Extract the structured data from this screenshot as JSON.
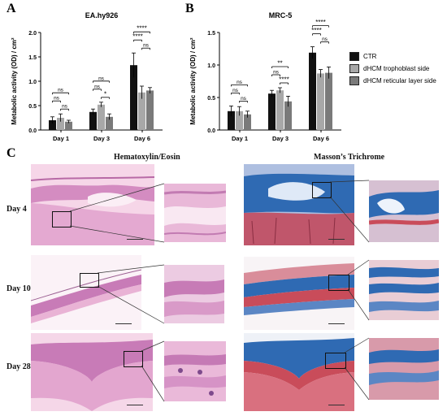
{
  "panels": {
    "a": "A",
    "b": "B",
    "c": "C"
  },
  "colors": {
    "ctr": "#111111",
    "trophoblast": "#a8a8a8",
    "reticular": "#7a7a7a",
    "he_bg": "#f2c8de",
    "he_tissue": "#d98ac0",
    "mt_blue": "#2f6ab3",
    "mt_red": "#c94c5a"
  },
  "chart_data": [
    {
      "type": "bar",
      "title": "EA.hy926",
      "ylabel": "Metabolic activity (OD) / cm²",
      "xlabel": "",
      "categories": [
        "Day 1",
        "Day 3",
        "Day 6"
      ],
      "ylim": [
        0,
        2.0
      ],
      "yticks": [
        "0.0",
        "0.5",
        "1.0",
        "1.5",
        "2.0"
      ],
      "grid": false,
      "series": [
        {
          "name": "CTR",
          "values": [
            0.2,
            0.37,
            1.33
          ],
          "errors": [
            0.07,
            0.06,
            0.25
          ]
        },
        {
          "name": "dHCM trophoblast side",
          "values": [
            0.25,
            0.52,
            0.77
          ],
          "errors": [
            0.08,
            0.05,
            0.13
          ]
        },
        {
          "name": "dHCM reticular layer side",
          "values": [
            0.17,
            0.27,
            0.81
          ],
          "errors": [
            0.03,
            0.06,
            0.06
          ]
        }
      ],
      "significance": [
        {
          "label": "ns",
          "pair": [
            0,
            2
          ],
          "category": 0
        },
        {
          "label": "ns",
          "pair": [
            0,
            1
          ],
          "category": 0
        },
        {
          "label": "ns",
          "pair": [
            1,
            2
          ],
          "category": 0
        },
        {
          "label": "ns",
          "pair": [
            0,
            2
          ],
          "category": 1
        },
        {
          "label": "ns",
          "pair": [
            0,
            1
          ],
          "category": 1
        },
        {
          "label": "*",
          "pair": [
            1,
            2
          ],
          "category": 1
        },
        {
          "label": "****",
          "pair": [
            0,
            2
          ],
          "category": 2
        },
        {
          "label": "****",
          "pair": [
            0,
            1
          ],
          "category": 2
        },
        {
          "label": "ns",
          "pair": [
            1,
            2
          ],
          "category": 2
        }
      ]
    },
    {
      "type": "bar",
      "title": "MRC-5",
      "ylabel": "Metabolic activity (OD) / cm²",
      "xlabel": "",
      "categories": [
        "Day 1",
        "Day 3",
        "Day 6"
      ],
      "ylim": [
        0,
        1.5
      ],
      "yticks": [
        "0.0",
        "0.5",
        "1.0",
        "1.5"
      ],
      "grid": false,
      "legend": "right",
      "series": [
        {
          "name": "CTR",
          "values": [
            0.29,
            0.56,
            1.19
          ],
          "errors": [
            0.08,
            0.05,
            0.09
          ]
        },
        {
          "name": "dHCM trophoblast side",
          "values": [
            0.29,
            0.61,
            0.87
          ],
          "errors": [
            0.07,
            0.04,
            0.06
          ]
        },
        {
          "name": "dHCM reticular layer side",
          "values": [
            0.24,
            0.44,
            0.88
          ],
          "errors": [
            0.05,
            0.08,
            0.09
          ]
        }
      ],
      "significance": [
        {
          "label": "ns",
          "pair": [
            0,
            2
          ],
          "category": 0
        },
        {
          "label": "ns",
          "pair": [
            0,
            1
          ],
          "category": 0
        },
        {
          "label": "ns",
          "pair": [
            1,
            2
          ],
          "category": 0
        },
        {
          "label": "**",
          "pair": [
            0,
            2
          ],
          "category": 1
        },
        {
          "label": "ns",
          "pair": [
            0,
            1
          ],
          "category": 1
        },
        {
          "label": "****",
          "pair": [
            1,
            2
          ],
          "category": 1
        },
        {
          "label": "****",
          "pair": [
            0,
            2
          ],
          "category": 2
        },
        {
          "label": "****",
          "pair": [
            0,
            1
          ],
          "category": 2
        },
        {
          "label": "ns",
          "pair": [
            1,
            2
          ],
          "category": 2
        }
      ]
    }
  ],
  "histology": {
    "he_title": "Hematoxylin/Eosin",
    "mt_title": "Masson’s Trichrome",
    "days": [
      "Day 4",
      "Day 10",
      "Day 28"
    ]
  }
}
